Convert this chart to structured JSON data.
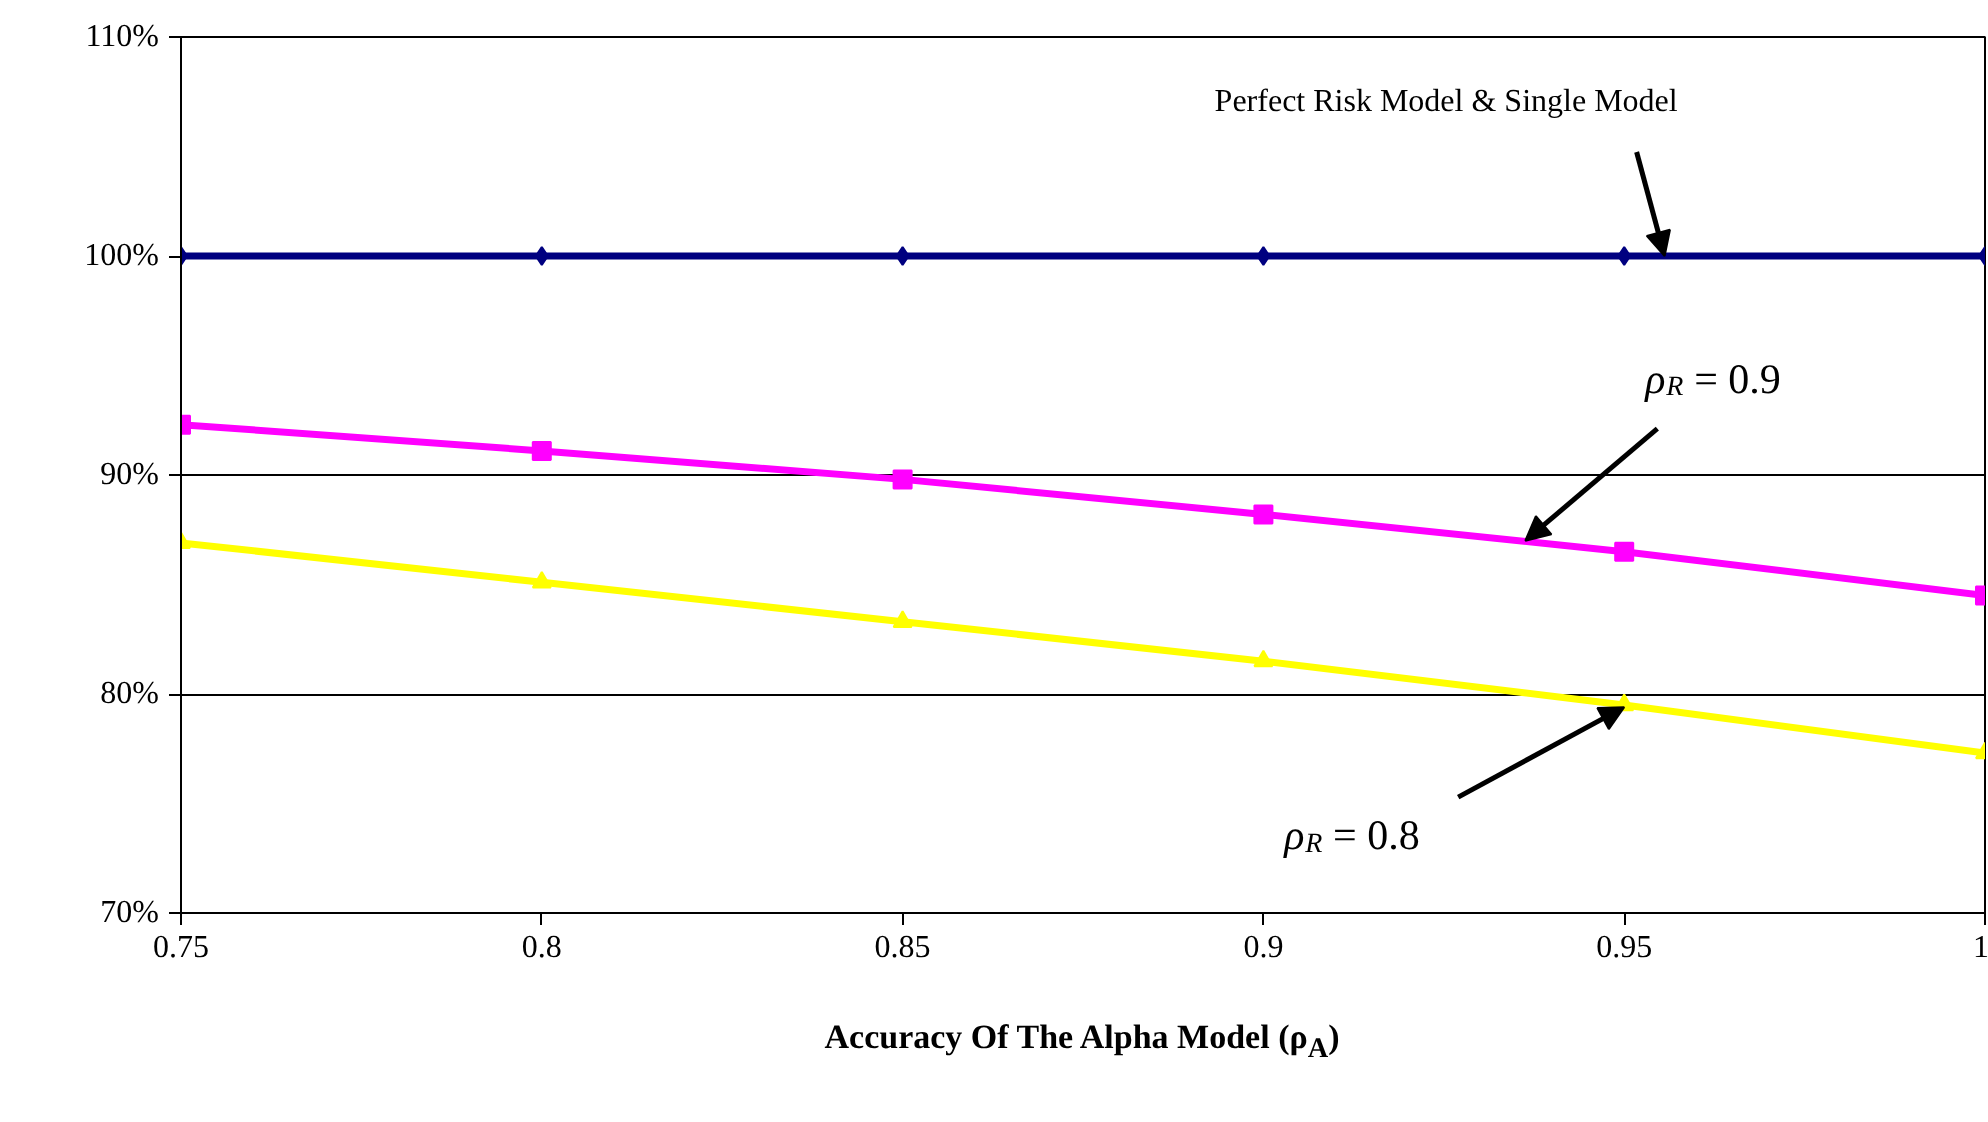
{
  "chart_data": {
    "type": "line",
    "xlabel": "Accuracy Of The Alpha Model (ρ$_{A}$)",
    "x": [
      0.75,
      0.8,
      0.85,
      0.9,
      0.95,
      1
    ],
    "series": [
      {
        "color": "#000080",
        "marker": "diamond",
        "values": [
          100,
          100,
          100,
          100,
          100,
          100
        ]
      },
      {
        "color": "#ff00ff",
        "marker": "square",
        "values": [
          92.3,
          91.1,
          89.8,
          88.2,
          86.5,
          84.5
        ]
      },
      {
        "color": "#ffff00",
        "marker": "triangle",
        "values": [
          86.9,
          85.1,
          83.3,
          81.5,
          79.5,
          77.3
        ]
      }
    ],
    "xlim": [
      0.75,
      1
    ],
    "xticks": [
      0.75,
      0.8,
      0.85,
      0.9,
      0.95,
      1
    ],
    "ylim": [
      70,
      110
    ],
    "yticks": [
      {
        "value": 70,
        "label": "70%"
      },
      {
        "value": 80,
        "label": "80%"
      },
      {
        "value": 90,
        "label": "90%"
      },
      {
        "value": 100,
        "label": "100%"
      },
      {
        "value": 110,
        "label": "110%"
      }
    ],
    "grid": "y",
    "line_style": "solid",
    "annotations": [
      {
        "text": "Perfect Risk Model & Single Model",
        "x": 0.9556,
        "y": 100
      },
      {
        "text": "ρ$_{R}$ = 0.9",
        "x": 0.9363,
        "y": 87.0
      },
      {
        "text": "ρ$_{R}$ = 0.8",
        "x": 0.95,
        "y": 79.4
      }
    ]
  }
}
